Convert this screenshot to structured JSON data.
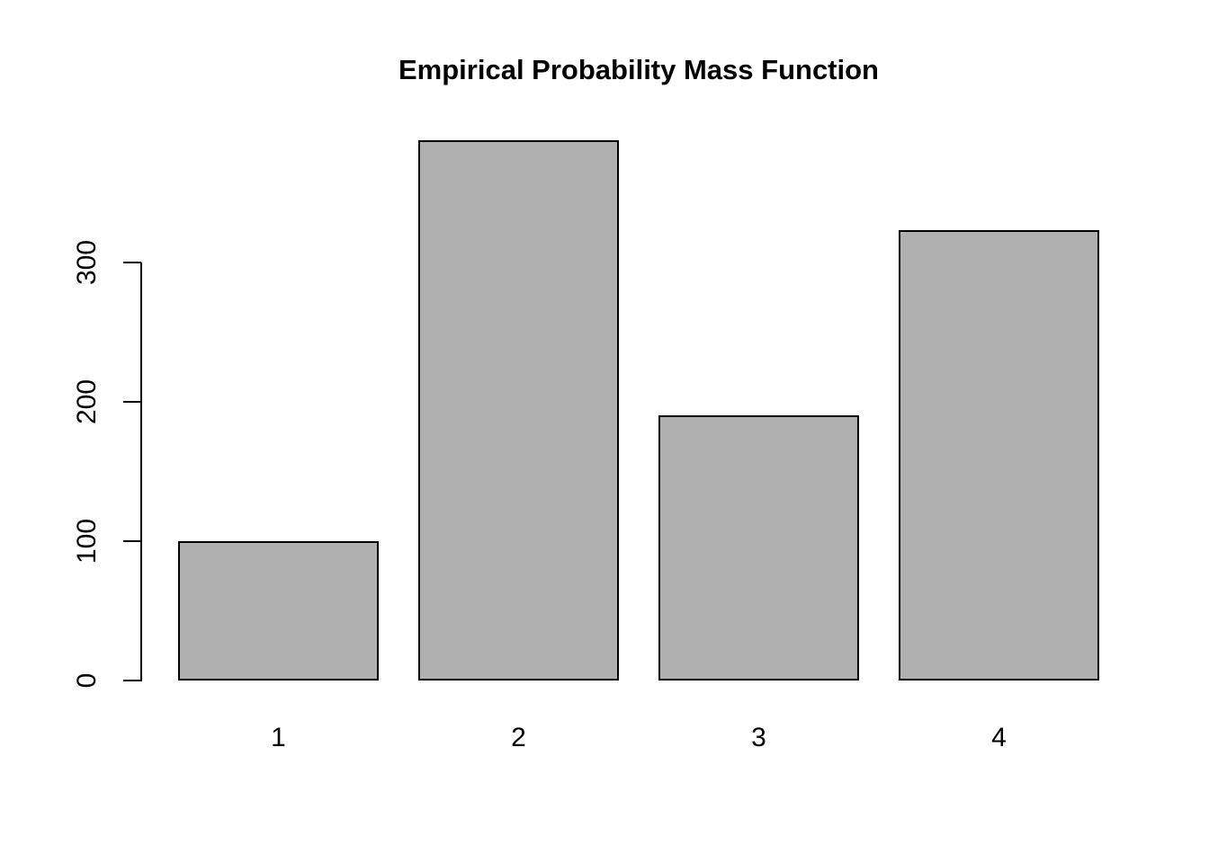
{
  "chart_data": {
    "type": "bar",
    "title": "Empirical Probability Mass Function",
    "xlabel": "",
    "ylabel": "",
    "categories": [
      "1",
      "2",
      "3",
      "4"
    ],
    "values": [
      100,
      388,
      190,
      323
    ],
    "y_ticks": [
      0,
      100,
      200,
      300
    ],
    "y_axis_tick_range": [
      0,
      300
    ],
    "ylim": [
      0,
      390
    ],
    "grid": false,
    "legend": null,
    "colors": {
      "bar_fill": "#B0B0B0",
      "bar_border": "#000000",
      "axis": "#000000",
      "text": "#000000",
      "background": "#FFFFFF"
    }
  }
}
